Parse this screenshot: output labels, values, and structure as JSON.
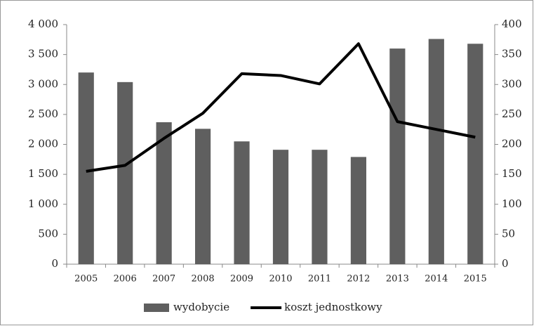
{
  "chart_data": {
    "type": "combo",
    "categories": [
      "2005",
      "2006",
      "2007",
      "2008",
      "2009",
      "2010",
      "2011",
      "2012",
      "2013",
      "2014",
      "2015"
    ],
    "series": [
      {
        "name": "wydobycie",
        "type": "bar",
        "color": "#5f5f5f",
        "values": [
          3200,
          3040,
          2370,
          2260,
          2050,
          1910,
          1910,
          1790,
          3600,
          3760,
          3680
        ]
      },
      {
        "name": "koszt jednostkowy",
        "type": "line",
        "axis": "y2",
        "color": "#000000",
        "values": [
          155,
          165,
          210,
          252,
          318,
          315,
          301,
          368,
          238,
          225,
          212
        ]
      }
    ],
    "ylim": [
      0,
      4000
    ],
    "yticks": [
      0,
      500,
      {
        "value": 1000,
        "label": "1 000"
      },
      {
        "value": 1500,
        "label": "1 500"
      },
      {
        "value": 2000,
        "label": "2 000"
      },
      {
        "value": 2500,
        "label": "2 500"
      },
      {
        "value": 3000,
        "label": "3 000"
      },
      {
        "value": 3500,
        "label": "3 500"
      },
      {
        "value": 4000,
        "label": "4 000"
      }
    ],
    "y2lim": [
      0,
      400
    ],
    "y2ticks": [
      0,
      50,
      100,
      150,
      200,
      250,
      300,
      350,
      400
    ],
    "grid": false,
    "legend": "bottom"
  }
}
